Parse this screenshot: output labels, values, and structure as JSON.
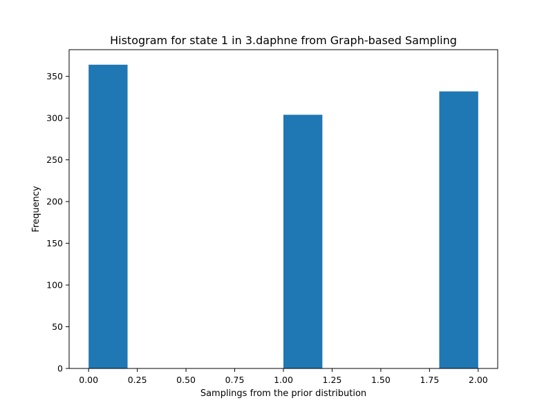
{
  "chart_data": {
    "type": "bar",
    "title": "Histogram for state 1 in 3.daphne from Graph-based Sampling",
    "xlabel": "Samplings from the prior distribution",
    "ylabel": "Frequency",
    "xlim": [
      -0.1,
      2.1
    ],
    "ylim": [
      0,
      382
    ],
    "bin_edges": [
      0.0,
      0.2,
      0.4,
      0.6,
      0.8,
      1.0,
      1.2,
      1.4,
      1.6,
      1.8,
      2.0
    ],
    "values": [
      364,
      0,
      0,
      0,
      0,
      304,
      0,
      0,
      0,
      332
    ],
    "x_ticks": [
      0.0,
      0.25,
      0.5,
      0.75,
      1.0,
      1.25,
      1.5,
      1.75,
      2.0
    ],
    "x_tick_labels": [
      "0.00",
      "0.25",
      "0.50",
      "0.75",
      "1.00",
      "1.25",
      "1.50",
      "1.75",
      "2.00"
    ],
    "y_ticks": [
      0,
      50,
      100,
      150,
      200,
      250,
      300,
      350
    ],
    "y_tick_labels": [
      "0",
      "50",
      "100",
      "150",
      "200",
      "250",
      "300",
      "350"
    ],
    "grid": false,
    "bar_color": "#1f77b4"
  }
}
